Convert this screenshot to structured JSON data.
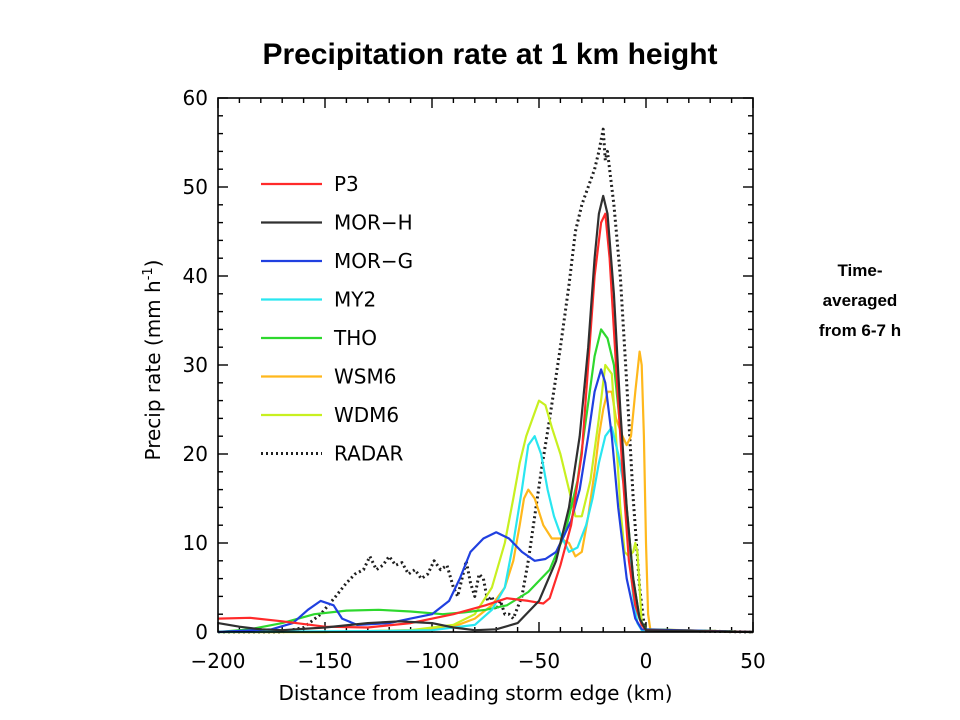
{
  "title": "Precipitation rate at 1 km height",
  "side_note": {
    "lines": [
      "Time-",
      "averaged",
      "from 6-7 h"
    ]
  },
  "chart_data": {
    "type": "line",
    "title": "Precipitation rate at 1 km height",
    "xlabel": "Distance from leading storm edge (km)",
    "ylabel": "Precip rate (mm h",
    "ylabel_sup": "-1",
    "ylabel_tail": ")",
    "xlim": [
      -200,
      50
    ],
    "ylim": [
      0,
      60
    ],
    "xticks": [
      -200,
      -150,
      -100,
      -50,
      0,
      50
    ],
    "xtick_labels": [
      "−200",
      "−150",
      "−100",
      "−50",
      "0",
      "50"
    ],
    "yticks": [
      0,
      10,
      20,
      30,
      40,
      50,
      60
    ],
    "ytick_labels": [
      "0",
      "10",
      "20",
      "30",
      "40",
      "50",
      "60"
    ],
    "legend_position": "upper-left",
    "grid": false,
    "series": [
      {
        "name": "P3",
        "color": "#ff2a2a",
        "dash": "solid",
        "points": [
          [
            -200,
            1.5
          ],
          [
            -185,
            1.6
          ],
          [
            -170,
            1.2
          ],
          [
            -150,
            0.6
          ],
          [
            -130,
            0.5
          ],
          [
            -110,
            1.0
          ],
          [
            -90,
            2.0
          ],
          [
            -75,
            3.0
          ],
          [
            -65,
            3.8
          ],
          [
            -55,
            3.5
          ],
          [
            -48,
            3.2
          ],
          [
            -45,
            3.8
          ],
          [
            -40,
            7.5
          ],
          [
            -35,
            12
          ],
          [
            -30,
            20
          ],
          [
            -27,
            30
          ],
          [
            -24,
            40
          ],
          [
            -21,
            46
          ],
          [
            -19,
            47
          ],
          [
            -17,
            42
          ],
          [
            -14,
            30
          ],
          [
            -11,
            18
          ],
          [
            -8,
            8
          ],
          [
            -5,
            3
          ],
          [
            -2,
            0.8
          ],
          [
            0,
            0.2
          ],
          [
            50,
            0
          ]
        ]
      },
      {
        "name": "MOR−H",
        "color": "#303030",
        "dash": "solid",
        "points": [
          [
            -200,
            1.0
          ],
          [
            -190,
            0.6
          ],
          [
            -180,
            0.3
          ],
          [
            -170,
            0.2
          ],
          [
            -150,
            0.5
          ],
          [
            -130,
            1.0
          ],
          [
            -115,
            1.2
          ],
          [
            -100,
            1.0
          ],
          [
            -90,
            0.5
          ],
          [
            -80,
            0.2
          ],
          [
            -70,
            0.3
          ],
          [
            -60,
            1.0
          ],
          [
            -50,
            3.5
          ],
          [
            -42,
            8
          ],
          [
            -36,
            14
          ],
          [
            -31,
            22
          ],
          [
            -27,
            32
          ],
          [
            -24,
            42
          ],
          [
            -22,
            47
          ],
          [
            -20,
            49
          ],
          [
            -18,
            47
          ],
          [
            -15,
            38
          ],
          [
            -12,
            25
          ],
          [
            -9,
            14
          ],
          [
            -6,
            6
          ],
          [
            -3,
            1.5
          ],
          [
            0,
            0.2
          ],
          [
            50,
            0
          ]
        ]
      },
      {
        "name": "MOR−G",
        "color": "#2040e0",
        "dash": "solid",
        "points": [
          [
            -200,
            0
          ],
          [
            -175,
            0.3
          ],
          [
            -165,
            1.0
          ],
          [
            -158,
            2.5
          ],
          [
            -152,
            3.5
          ],
          [
            -146,
            3.0
          ],
          [
            -142,
            1.5
          ],
          [
            -135,
            0.8
          ],
          [
            -120,
            1.0
          ],
          [
            -110,
            1.5
          ],
          [
            -100,
            2.0
          ],
          [
            -92,
            3.5
          ],
          [
            -87,
            6
          ],
          [
            -82,
            9
          ],
          [
            -76,
            10.5
          ],
          [
            -70,
            11.2
          ],
          [
            -64,
            10.5
          ],
          [
            -58,
            9
          ],
          [
            -52,
            8
          ],
          [
            -47,
            8.2
          ],
          [
            -42,
            9
          ],
          [
            -38,
            11
          ],
          [
            -35,
            12.5
          ],
          [
            -31,
            16
          ],
          [
            -27,
            22
          ],
          [
            -24,
            27
          ],
          [
            -21,
            29.5
          ],
          [
            -19,
            28
          ],
          [
            -16,
            22
          ],
          [
            -13,
            14
          ],
          [
            -9,
            6
          ],
          [
            -5,
            1.5
          ],
          [
            -2,
            0.3
          ],
          [
            50,
            0
          ]
        ]
      },
      {
        "name": "MY2",
        "color": "#29e6f0",
        "dash": "solid",
        "points": [
          [
            -200,
            0
          ],
          [
            -130,
            0.1
          ],
          [
            -100,
            0.2
          ],
          [
            -80,
            0.8
          ],
          [
            -72,
            2.5
          ],
          [
            -66,
            5
          ],
          [
            -62,
            10
          ],
          [
            -58,
            16
          ],
          [
            -55,
            21
          ],
          [
            -52,
            22
          ],
          [
            -49,
            20
          ],
          [
            -46,
            16
          ],
          [
            -43,
            13
          ],
          [
            -40,
            11
          ],
          [
            -36,
            9
          ],
          [
            -32,
            9.5
          ],
          [
            -28,
            12
          ],
          [
            -25,
            15
          ],
          [
            -22,
            19
          ],
          [
            -19,
            22
          ],
          [
            -16,
            23
          ],
          [
            -13,
            20
          ],
          [
            -10,
            16
          ],
          [
            -8,
            9
          ],
          [
            -6,
            4
          ],
          [
            -4,
            1
          ],
          [
            -2,
            0.2
          ],
          [
            50,
            0
          ]
        ]
      },
      {
        "name": "THO",
        "color": "#2ed82e",
        "dash": "solid",
        "points": [
          [
            -200,
            0
          ],
          [
            -185,
            0.3
          ],
          [
            -170,
            1.0
          ],
          [
            -155,
            2.0
          ],
          [
            -140,
            2.4
          ],
          [
            -125,
            2.5
          ],
          [
            -110,
            2.3
          ],
          [
            -95,
            2.0
          ],
          [
            -85,
            2.2
          ],
          [
            -75,
            2.5
          ],
          [
            -65,
            3.0
          ],
          [
            -55,
            4.5
          ],
          [
            -45,
            7
          ],
          [
            -38,
            11
          ],
          [
            -32,
            17
          ],
          [
            -28,
            24
          ],
          [
            -24,
            31
          ],
          [
            -21,
            34
          ],
          [
            -18,
            33
          ],
          [
            -15,
            30
          ],
          [
            -12,
            23
          ],
          [
            -9,
            14
          ],
          [
            -6,
            6
          ],
          [
            -3,
            1.5
          ],
          [
            0,
            0.3
          ],
          [
            50,
            0
          ]
        ]
      },
      {
        "name": "WSM6",
        "color": "#ffb81c",
        "dash": "solid",
        "points": [
          [
            -200,
            0
          ],
          [
            -150,
            0
          ],
          [
            -110,
            0.2
          ],
          [
            -90,
            0.6
          ],
          [
            -80,
            1.5
          ],
          [
            -72,
            3
          ],
          [
            -66,
            5
          ],
          [
            -62,
            8
          ],
          [
            -59,
            12
          ],
          [
            -57,
            15
          ],
          [
            -55,
            16
          ],
          [
            -52,
            15
          ],
          [
            -48,
            12
          ],
          [
            -44,
            10.5
          ],
          [
            -40,
            10.5
          ],
          [
            -36,
            10
          ],
          [
            -33,
            8.5
          ],
          [
            -30,
            9
          ],
          [
            -27,
            13
          ],
          [
            -24,
            18
          ],
          [
            -22,
            22
          ],
          [
            -20,
            25
          ],
          [
            -18,
            27
          ],
          [
            -16,
            27
          ],
          [
            -14,
            24
          ],
          [
            -11,
            22
          ],
          [
            -9,
            21
          ],
          [
            -7,
            22
          ],
          [
            -5,
            27
          ],
          [
            -3,
            31.5
          ],
          [
            -2,
            30
          ],
          [
            -1,
            22
          ],
          [
            0,
            10
          ],
          [
            1,
            2
          ],
          [
            2,
            0.3
          ],
          [
            50,
            0
          ]
        ]
      },
      {
        "name": "WDM6",
        "color": "#c8f020",
        "dash": "solid",
        "points": [
          [
            -200,
            0
          ],
          [
            -150,
            0
          ],
          [
            -110,
            0.2
          ],
          [
            -90,
            0.8
          ],
          [
            -80,
            2.0
          ],
          [
            -72,
            5
          ],
          [
            -66,
            10
          ],
          [
            -62,
            15
          ],
          [
            -59,
            19
          ],
          [
            -56,
            22
          ],
          [
            -53,
            24
          ],
          [
            -50,
            26
          ],
          [
            -47,
            25.5
          ],
          [
            -44,
            23
          ],
          [
            -40,
            20
          ],
          [
            -36,
            16
          ],
          [
            -33,
            13
          ],
          [
            -30,
            13
          ],
          [
            -26,
            17
          ],
          [
            -22,
            24
          ],
          [
            -19,
            30
          ],
          [
            -16,
            29
          ],
          [
            -14,
            22
          ],
          [
            -12,
            14
          ],
          [
            -10,
            9
          ],
          [
            -8,
            8.5
          ],
          [
            -6,
            9
          ],
          [
            -5,
            10
          ],
          [
            -4,
            9
          ],
          [
            -3,
            5
          ],
          [
            -2,
            1
          ],
          [
            0,
            0.2
          ],
          [
            50,
            0
          ]
        ]
      },
      {
        "name": "RADAR",
        "color": "#202020",
        "dash": "dotted",
        "points": [
          [
            -200,
            0
          ],
          [
            -170,
            0
          ],
          [
            -160,
            0.5
          ],
          [
            -152,
            2
          ],
          [
            -145,
            4
          ],
          [
            -140,
            5.5
          ],
          [
            -136,
            6.5
          ],
          [
            -132,
            7
          ],
          [
            -129,
            8.5
          ],
          [
            -126,
            7
          ],
          [
            -123,
            7.5
          ],
          [
            -120,
            8.5
          ],
          [
            -117,
            7.5
          ],
          [
            -114,
            7.8
          ],
          [
            -111,
            6.5
          ],
          [
            -108,
            7
          ],
          [
            -105,
            6
          ],
          [
            -102,
            6.5
          ],
          [
            -99,
            8
          ],
          [
            -96,
            7
          ],
          [
            -93,
            7.5
          ],
          [
            -90,
            5
          ],
          [
            -88,
            4
          ],
          [
            -86,
            6
          ],
          [
            -84,
            8
          ],
          [
            -82,
            5.5
          ],
          [
            -80,
            4
          ],
          [
            -78,
            6.5
          ],
          [
            -76,
            6
          ],
          [
            -74,
            3.5
          ],
          [
            -72,
            4
          ],
          [
            -70,
            2.5
          ],
          [
            -68,
            3.5
          ],
          [
            -66,
            2
          ],
          [
            -64,
            2
          ],
          [
            -62,
            1.5
          ],
          [
            -58,
            4
          ],
          [
            -55,
            8
          ],
          [
            -52,
            13
          ],
          [
            -49,
            18
          ],
          [
            -45,
            24
          ],
          [
            -40,
            32
          ],
          [
            -36,
            39
          ],
          [
            -33,
            45
          ],
          [
            -30,
            48
          ],
          [
            -27,
            50
          ],
          [
            -24,
            52
          ],
          [
            -22,
            54
          ],
          [
            -20,
            56.5
          ],
          [
            -19,
            53
          ],
          [
            -18,
            54
          ],
          [
            -17,
            52
          ],
          [
            -15,
            48
          ],
          [
            -12,
            40
          ],
          [
            -9,
            28
          ],
          [
            -6,
            15
          ],
          [
            -3,
            5
          ],
          [
            -1,
            1
          ],
          [
            0,
            0.2
          ],
          [
            50,
            0
          ]
        ]
      }
    ]
  }
}
